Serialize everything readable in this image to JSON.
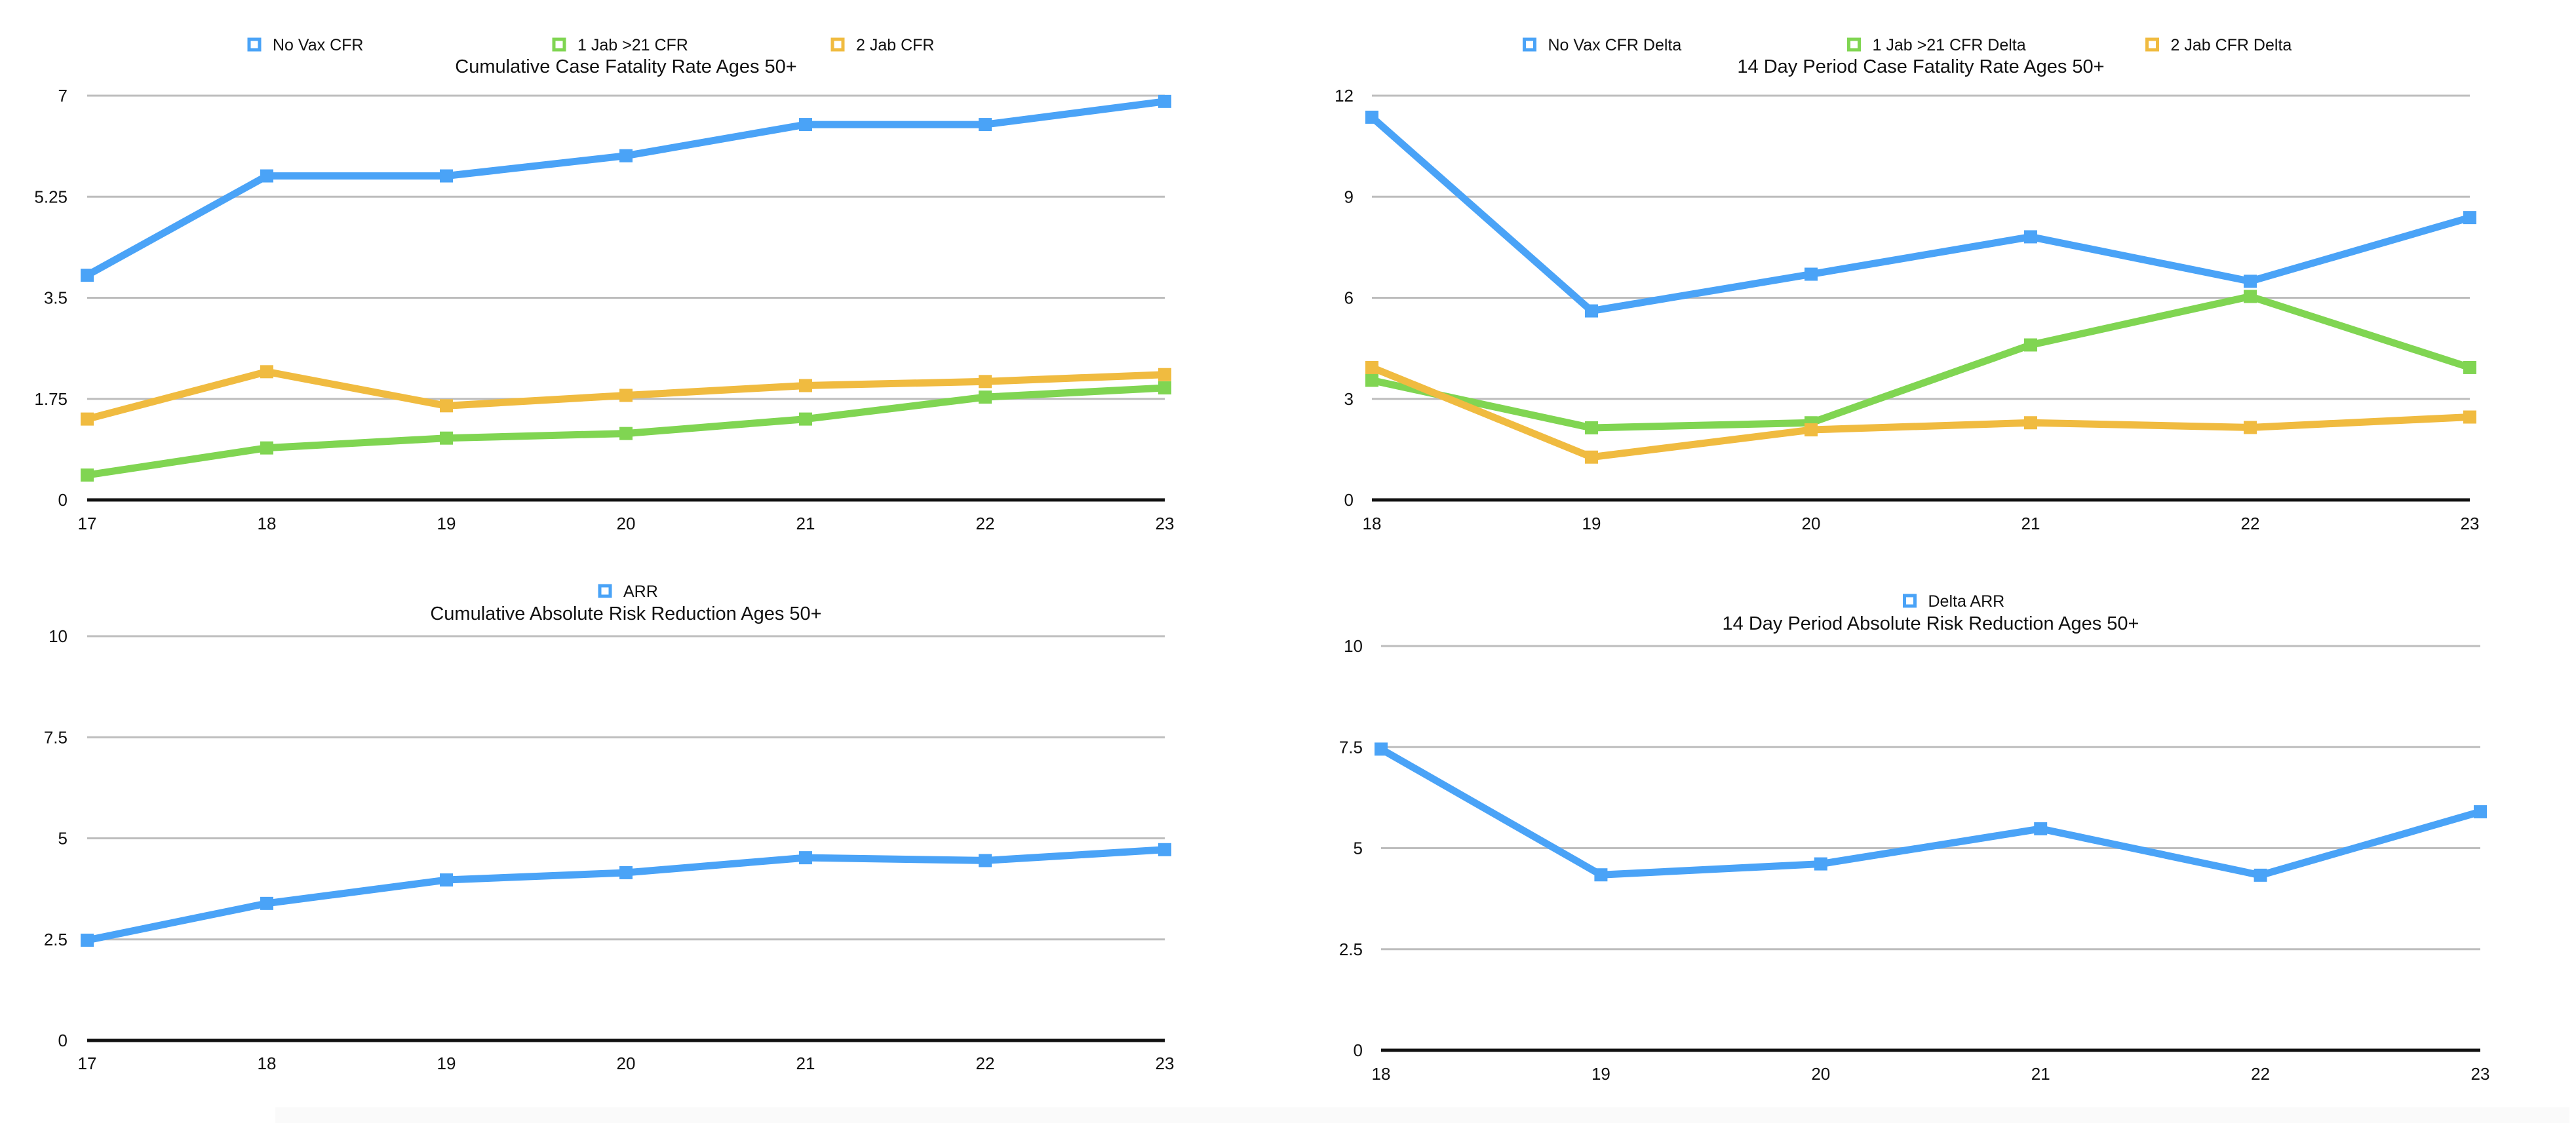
{
  "chart_data": [
    {
      "id": "cumulative-cfr",
      "type": "line",
      "title": "Cumulative Case Fatality Rate Ages 50+",
      "xlabel": "",
      "ylabel": "",
      "categories": [
        "17",
        "18",
        "19",
        "20",
        "21",
        "22",
        "23"
      ],
      "ylim": [
        0,
        7
      ],
      "yticks": [
        "0",
        "1.75",
        "3.5",
        "5.25",
        "7"
      ],
      "ytick_values": [
        0,
        1.75,
        3.5,
        5.25,
        7
      ],
      "grid": true,
      "legend_position": "top-center",
      "series": [
        {
          "name": "No Vax CFR",
          "color": "#4aa3f7",
          "values": [
            3.89,
            5.61,
            5.61,
            5.96,
            6.5,
            6.5,
            6.9
          ]
        },
        {
          "name": "1 Jab >21 CFR",
          "color": "#80d552",
          "values": [
            0.43,
            0.9,
            1.07,
            1.15,
            1.4,
            1.78,
            1.94
          ]
        },
        {
          "name": "2 Jab CFR",
          "color": "#f0bb40",
          "values": [
            1.4,
            2.22,
            1.63,
            1.81,
            1.98,
            2.05,
            2.17
          ]
        }
      ]
    },
    {
      "id": "period-cfr",
      "type": "line",
      "title": "14 Day Period Case Fatality Rate Ages 50+",
      "xlabel": "",
      "ylabel": "",
      "categories": [
        "18",
        "19",
        "20",
        "21",
        "22",
        "23"
      ],
      "ylim": [
        0,
        12
      ],
      "yticks": [
        "0",
        "3",
        "6",
        "9",
        "12"
      ],
      "ytick_values": [
        0,
        3,
        6,
        9,
        12
      ],
      "grid": true,
      "legend_position": "top-center",
      "series": [
        {
          "name": "No Vax CFR Delta",
          "color": "#4aa3f7",
          "values": [
            11.36,
            5.61,
            6.7,
            7.81,
            6.49,
            8.38
          ]
        },
        {
          "name": "1 Jab >21 CFR Delta",
          "color": "#80d552",
          "values": [
            3.55,
            2.14,
            2.29,
            4.6,
            6.04,
            3.93
          ]
        },
        {
          "name": "2 Jab CFR Delta",
          "color": "#f0bb40",
          "values": [
            3.93,
            1.27,
            2.08,
            2.29,
            2.15,
            2.46
          ]
        }
      ]
    },
    {
      "id": "cumulative-arr",
      "type": "line",
      "title": "Cumulative Absolute Risk Reduction Ages 50+",
      "xlabel": "",
      "ylabel": "",
      "categories": [
        "17",
        "18",
        "19",
        "20",
        "21",
        "22",
        "23"
      ],
      "ylim": [
        0,
        10
      ],
      "yticks": [
        "0",
        "2.5",
        "5",
        "7.5",
        "10"
      ],
      "ytick_values": [
        0,
        2.5,
        5,
        7.5,
        10
      ],
      "grid": true,
      "legend_position": "top-center",
      "series": [
        {
          "name": "ARR",
          "color": "#4aa3f7",
          "values": [
            2.48,
            3.39,
            3.97,
            4.15,
            4.52,
            4.45,
            4.72
          ]
        }
      ]
    },
    {
      "id": "period-arr",
      "type": "line",
      "title": "14 Day Period Absolute Risk Reduction Ages 50+",
      "xlabel": "",
      "ylabel": "",
      "categories": [
        "18",
        "19",
        "20",
        "21",
        "22",
        "23"
      ],
      "ylim": [
        0,
        10
      ],
      "yticks": [
        "0",
        "2.5",
        "5",
        "7.5",
        "10"
      ],
      "ytick_values": [
        0,
        2.5,
        5,
        7.5,
        10
      ],
      "grid": true,
      "legend_position": "top-center",
      "series": [
        {
          "name": "Delta ARR",
          "color": "#4aa3f7",
          "values": [
            7.45,
            4.34,
            4.61,
            5.48,
            4.33,
            5.9
          ]
        }
      ]
    }
  ]
}
